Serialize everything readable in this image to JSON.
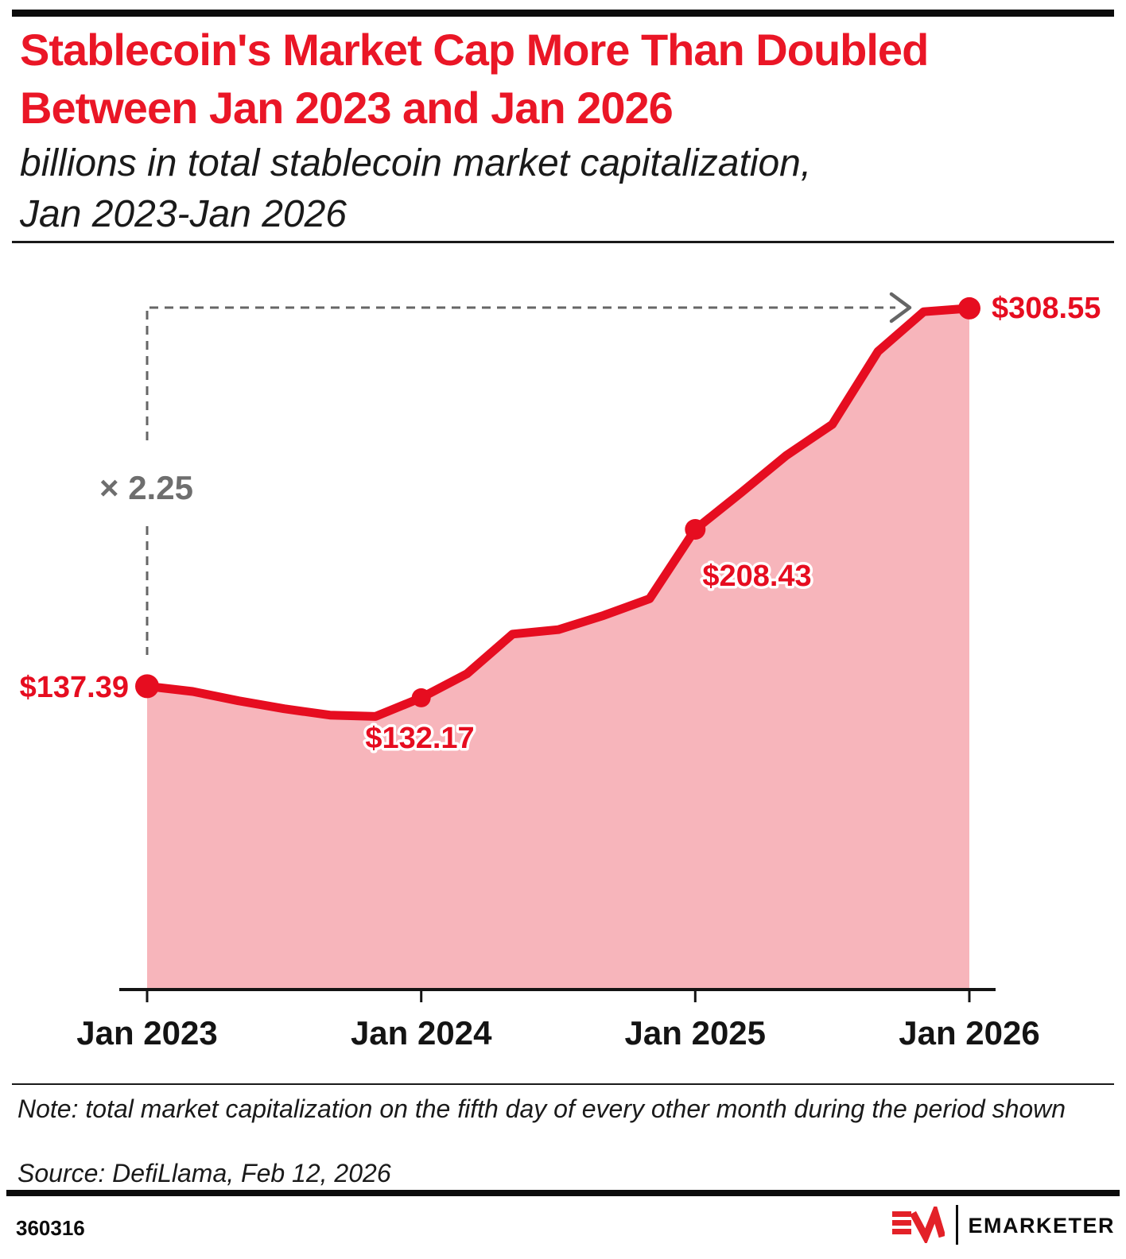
{
  "header": {
    "title_line1": "Stablecoin's Market Cap More Than Doubled",
    "title_line2": "Between Jan 2023 and Jan 2026",
    "subtitle_line1": "billions in total stablecoin market capitalization,",
    "subtitle_line2": "Jan 2023-Jan 2026"
  },
  "chart_data": {
    "type": "area",
    "title": "Stablecoin's Market Cap More Than Doubled Between Jan 2023 and Jan 2026",
    "subtitle": "billions in total stablecoin market capitalization, Jan 2023-Jan 2026",
    "x": [
      "Jan 2023",
      "Mar 2023",
      "May 2023",
      "Jul 2023",
      "Sep 2023",
      "Nov 2023",
      "Jan 2024",
      "Mar 2024",
      "May 2024",
      "Jul 2024",
      "Sep 2024",
      "Nov 2024",
      "Jan 2025",
      "Mar 2025",
      "May 2025",
      "Jul 2025",
      "Sep 2025",
      "Nov 2025",
      "Jan 2026"
    ],
    "values": [
      137.39,
      135.0,
      130.8,
      127.2,
      124.3,
      123.7,
      132.17,
      143.0,
      161.0,
      163.0,
      169.5,
      177.0,
      208.43,
      225.0,
      242.0,
      256.0,
      289.0,
      307.0,
      308.55
    ],
    "x_tick_labels": [
      "Jan 2023",
      "Jan 2024",
      "Jan 2025",
      "Jan 2026"
    ],
    "ylim": [
      0,
      335
    ],
    "grid": false,
    "legend": "none",
    "labeled_points": [
      {
        "x": "Jan 2023",
        "value": 137.39,
        "label": "$137.39"
      },
      {
        "x": "Jan 2024",
        "value": 132.17,
        "label": "$132.17"
      },
      {
        "x": "Jan 2025",
        "value": 208.43,
        "label": "$208.43"
      },
      {
        "x": "Jan 2026",
        "value": 308.55,
        "label": "$308.55"
      }
    ],
    "annotation": {
      "label": "× 2.25"
    },
    "colors": {
      "line": "#e60d20",
      "fill": "#f7b5bb",
      "value_label": "#e60d20",
      "title": "#ea1626",
      "annotation_gray": "#6e6e6e",
      "axis": "#141414"
    }
  },
  "footnote": {
    "note": "Note: total market capitalization on the fifth day of every other month during the period shown",
    "source": "Source: DefiLlama, Feb 12, 2026"
  },
  "footer": {
    "chart_id": "360316",
    "brand_name": "EMARKETER"
  }
}
